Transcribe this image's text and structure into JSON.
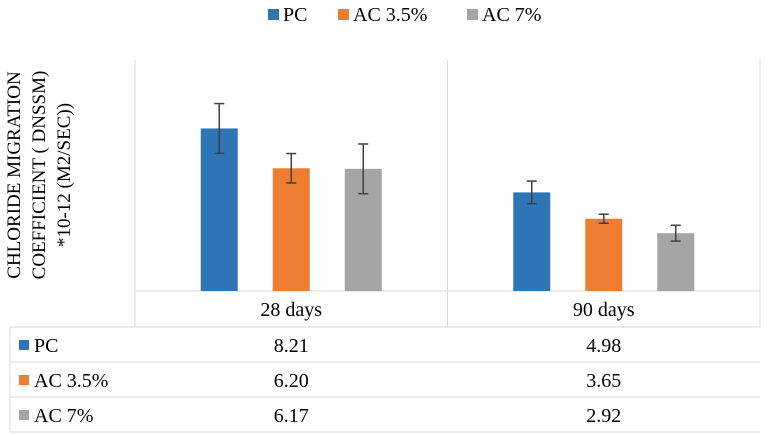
{
  "chart_data": {
    "type": "bar",
    "title": "",
    "xlabel": "",
    "ylabel_lines": [
      "CHLORIDE MIGRATION",
      "COEFFICIENT ( DNSSM)",
      "*10-12 (M2/SEC))"
    ],
    "categories": [
      "28 days",
      "90 days"
    ],
    "series": [
      {
        "name": "PC",
        "color": "#2e75b6",
        "values": [
          8.21,
          4.98
        ],
        "display": [
          "8.21",
          "4.98"
        ],
        "error": [
          1.1,
          0.5
        ]
      },
      {
        "name": "AC 3.5%",
        "color": "#ed7d31",
        "values": [
          6.2,
          3.65
        ],
        "display": [
          "6.20",
          "3.65"
        ],
        "error": [
          0.65,
          0.2
        ]
      },
      {
        "name": "AC 7%",
        "color": "#a5a5a5",
        "values": [
          6.17,
          2.92
        ],
        "display": [
          "6.17",
          "2.92"
        ],
        "error": [
          1.1,
          0.35
        ]
      }
    ],
    "ylim": [
      0,
      10
    ],
    "legend_position": "top",
    "grid": "vertical",
    "data_table": true
  }
}
